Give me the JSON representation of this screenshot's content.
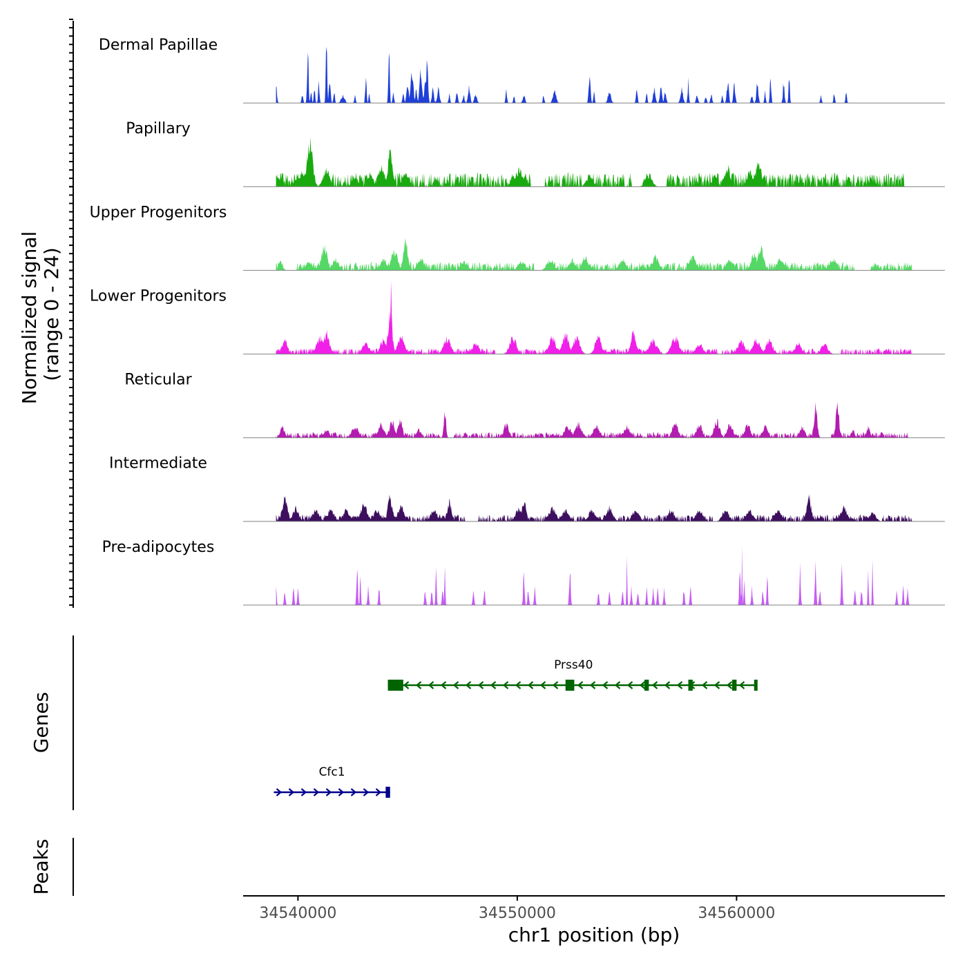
{
  "chart_data": {
    "type": "area",
    "title": "",
    "ylabel": "Normalized signal",
    "ylabel_range": "(range 0 - 24)",
    "ylim": [
      0,
      24
    ],
    "xlabel": "chr1 position (bp)",
    "xlim": [
      34537500,
      34569500
    ],
    "x_ticks": [
      34540000,
      34550000,
      34560000
    ],
    "x_tick_labels": [
      "34540000",
      "34550000",
      "34560000"
    ],
    "track_start": 34539000,
    "track_end": 34568000,
    "series": [
      {
        "name": "Dermal Papillae",
        "color": "#1f3fd8",
        "peaks": [
          [
            34539000,
            6,
            80
          ],
          [
            34540200,
            3,
            70
          ],
          [
            34540450,
            22,
            60
          ],
          [
            34540600,
            5,
            60
          ],
          [
            34540750,
            6,
            60
          ],
          [
            34540950,
            8,
            60
          ],
          [
            34541300,
            22,
            60
          ],
          [
            34541450,
            9,
            70
          ],
          [
            34541650,
            5,
            60
          ],
          [
            34542050,
            3,
            160
          ],
          [
            34542600,
            3,
            60
          ],
          [
            34543100,
            10,
            60
          ],
          [
            34543250,
            3,
            60
          ],
          [
            34544150,
            22,
            60
          ],
          [
            34544350,
            4,
            60
          ],
          [
            34544800,
            3,
            70
          ],
          [
            34545000,
            6,
            100
          ],
          [
            34545200,
            11,
            120
          ],
          [
            34545400,
            5,
            80
          ],
          [
            34545600,
            12,
            110
          ],
          [
            34545800,
            7,
            100
          ],
          [
            34545900,
            19,
            70
          ],
          [
            34546150,
            5,
            90
          ],
          [
            34546400,
            5,
            110
          ],
          [
            34546900,
            3,
            70
          ],
          [
            34547250,
            4,
            80
          ],
          [
            34547550,
            3,
            80
          ],
          [
            34547800,
            6,
            100
          ],
          [
            34548100,
            3,
            120
          ],
          [
            34549500,
            5,
            60
          ],
          [
            34549850,
            3,
            60
          ],
          [
            34550300,
            3,
            100
          ],
          [
            34551200,
            3,
            60
          ],
          [
            34551700,
            4,
            150
          ],
          [
            34553300,
            11,
            80
          ],
          [
            34553500,
            4,
            60
          ],
          [
            34554200,
            4,
            140
          ],
          [
            34555450,
            5,
            70
          ],
          [
            34555900,
            4,
            60
          ],
          [
            34556250,
            5,
            100
          ],
          [
            34556550,
            5,
            100
          ],
          [
            34556750,
            4,
            90
          ],
          [
            34557500,
            5,
            120
          ],
          [
            34557800,
            8,
            60
          ],
          [
            34558200,
            3,
            90
          ],
          [
            34558600,
            3,
            70
          ],
          [
            34558850,
            3,
            80
          ],
          [
            34559350,
            3,
            60
          ],
          [
            34559600,
            8,
            90
          ],
          [
            34559900,
            7,
            80
          ],
          [
            34560700,
            3,
            80
          ],
          [
            34560950,
            7,
            90
          ],
          [
            34561300,
            4,
            60
          ],
          [
            34561550,
            10,
            60
          ],
          [
            34562150,
            8,
            70
          ],
          [
            34562400,
            9,
            60
          ],
          [
            34563850,
            3,
            60
          ],
          [
            34564450,
            4,
            60
          ],
          [
            34565000,
            4,
            60
          ]
        ]
      },
      {
        "name": "Papillary",
        "color": "#1aaa10",
        "peaks": [
          [
            34539000,
            3,
            400
          ],
          [
            34540200,
            5,
            500
          ],
          [
            34540550,
            16,
            250
          ],
          [
            34541300,
            6,
            300
          ],
          [
            34542600,
            4,
            250
          ],
          [
            34543300,
            5,
            200
          ],
          [
            34543800,
            7,
            300
          ],
          [
            34544200,
            12,
            200
          ],
          [
            34544900,
            5,
            300
          ],
          [
            34546300,
            3,
            200
          ],
          [
            34549800,
            4,
            200
          ],
          [
            34550100,
            6,
            300
          ],
          [
            34553300,
            4,
            300
          ],
          [
            34556000,
            4,
            300
          ],
          [
            34559000,
            4,
            200
          ],
          [
            34559600,
            7,
            200
          ],
          [
            34560600,
            6,
            250
          ],
          [
            34561000,
            9,
            250
          ],
          [
            34566200,
            2,
            300
          ]
        ],
        "baseline": 2.5
      },
      {
        "name": "Upper Progenitors",
        "color": "#55d865",
        "peaks": [
          [
            34539200,
            3,
            200
          ],
          [
            34540500,
            3,
            300
          ],
          [
            34541200,
            9,
            250
          ],
          [
            34541700,
            4,
            300
          ],
          [
            34543900,
            4,
            300
          ],
          [
            34544400,
            7,
            300
          ],
          [
            34544900,
            11,
            200
          ],
          [
            34545600,
            4,
            300
          ],
          [
            34547600,
            3,
            300
          ],
          [
            34550200,
            3,
            300
          ],
          [
            34551500,
            4,
            300
          ],
          [
            34552500,
            4,
            250
          ],
          [
            34553100,
            5,
            250
          ],
          [
            34554800,
            4,
            300
          ],
          [
            34556300,
            5,
            300
          ],
          [
            34558000,
            5,
            300
          ],
          [
            34559700,
            4,
            300
          ],
          [
            34560800,
            6,
            250
          ],
          [
            34561100,
            9,
            250
          ],
          [
            34562000,
            4,
            300
          ],
          [
            34564400,
            4,
            300
          ]
        ],
        "baseline": 1.5
      },
      {
        "name": "Lower Progenitors",
        "color": "#f020e8",
        "peaks": [
          [
            34539400,
            5,
            250
          ],
          [
            34541000,
            6,
            300
          ],
          [
            34541300,
            8,
            250
          ],
          [
            34543100,
            4,
            300
          ],
          [
            34543900,
            5,
            300
          ],
          [
            34544200,
            14,
            200
          ],
          [
            34544250,
            24,
            80
          ],
          [
            34544700,
            6,
            300
          ],
          [
            34546800,
            6,
            300
          ],
          [
            34548100,
            4,
            300
          ],
          [
            34549800,
            6,
            300
          ],
          [
            34551600,
            6,
            300
          ],
          [
            34552200,
            7,
            300
          ],
          [
            34552700,
            6,
            300
          ],
          [
            34553700,
            6,
            300
          ],
          [
            34555300,
            8,
            250
          ],
          [
            34556200,
            5,
            350
          ],
          [
            34557200,
            6,
            350
          ],
          [
            34558300,
            4,
            300
          ],
          [
            34560200,
            5,
            300
          ],
          [
            34560900,
            5,
            350
          ],
          [
            34561500,
            5,
            300
          ],
          [
            34562800,
            4,
            300
          ],
          [
            34564000,
            4,
            300
          ]
        ],
        "baseline": 1.0
      },
      {
        "name": "Reticular",
        "color": "#b31cb0",
        "peaks": [
          [
            34539300,
            4,
            200
          ],
          [
            34541300,
            3,
            250
          ],
          [
            34542600,
            4,
            300
          ],
          [
            34543800,
            5,
            250
          ],
          [
            34544300,
            6,
            250
          ],
          [
            34544650,
            7,
            200
          ],
          [
            34545500,
            3,
            200
          ],
          [
            34546700,
            10,
            100
          ],
          [
            34549500,
            5,
            200
          ],
          [
            34552300,
            4,
            300
          ],
          [
            34552800,
            5,
            300
          ],
          [
            34553600,
            4,
            300
          ],
          [
            34555000,
            4,
            300
          ],
          [
            34557200,
            6,
            250
          ],
          [
            34558300,
            5,
            250
          ],
          [
            34559100,
            6,
            250
          ],
          [
            34559700,
            5,
            250
          ],
          [
            34560500,
            5,
            250
          ],
          [
            34561300,
            4,
            250
          ],
          [
            34563000,
            4,
            200
          ],
          [
            34563600,
            11,
            150
          ],
          [
            34564600,
            12,
            150
          ],
          [
            34565300,
            3,
            150
          ],
          [
            34566000,
            4,
            150
          ]
        ],
        "baseline": 1.0
      },
      {
        "name": "Intermediate",
        "color": "#3d0f5e",
        "peaks": [
          [
            34539400,
            8,
            250
          ],
          [
            34539900,
            5,
            250
          ],
          [
            34540800,
            4,
            300
          ],
          [
            34541500,
            4,
            300
          ],
          [
            34542200,
            4,
            300
          ],
          [
            34543000,
            6,
            300
          ],
          [
            34543600,
            4,
            300
          ],
          [
            34544200,
            9,
            200
          ],
          [
            34544700,
            5,
            300
          ],
          [
            34546200,
            4,
            300
          ],
          [
            34546900,
            7,
            200
          ],
          [
            34550100,
            5,
            300
          ],
          [
            34550300,
            7,
            200
          ],
          [
            34551600,
            5,
            300
          ],
          [
            34552200,
            4,
            300
          ],
          [
            34553400,
            4,
            300
          ],
          [
            34554200,
            5,
            300
          ],
          [
            34555400,
            4,
            300
          ],
          [
            34557000,
            4,
            300
          ],
          [
            34558300,
            4,
            300
          ],
          [
            34559500,
            4,
            300
          ],
          [
            34560600,
            4,
            300
          ],
          [
            34561900,
            4,
            300
          ],
          [
            34563300,
            9,
            200
          ],
          [
            34564900,
            5,
            300
          ],
          [
            34566200,
            3,
            300
          ]
        ],
        "baseline": 1.2
      },
      {
        "name": "Pre-adipocytes",
        "color": "#c55cf5",
        "peaks": [
          [
            34539000,
            6,
            60
          ],
          [
            34539400,
            6,
            60
          ],
          [
            34539800,
            6,
            60
          ],
          [
            34540000,
            6,
            60
          ],
          [
            34542700,
            14,
            60
          ],
          [
            34542850,
            14,
            40
          ],
          [
            34543200,
            6,
            60
          ],
          [
            34543700,
            6,
            60
          ],
          [
            34545800,
            6,
            60
          ],
          [
            34546100,
            6,
            60
          ],
          [
            34546300,
            13,
            50
          ],
          [
            34546600,
            6,
            60
          ],
          [
            34546700,
            14,
            40
          ],
          [
            34548000,
            6,
            60
          ],
          [
            34548500,
            6,
            60
          ],
          [
            34550300,
            13,
            60
          ],
          [
            34550500,
            6,
            60
          ],
          [
            34550800,
            6,
            60
          ],
          [
            34552400,
            14,
            60
          ],
          [
            34553700,
            6,
            60
          ],
          [
            34554200,
            6,
            60
          ],
          [
            34554800,
            6,
            60
          ],
          [
            34555000,
            21,
            30
          ],
          [
            34555200,
            6,
            60
          ],
          [
            34555500,
            6,
            60
          ],
          [
            34555900,
            6,
            60
          ],
          [
            34556200,
            6,
            60
          ],
          [
            34556400,
            6,
            60
          ],
          [
            34556700,
            6,
            60
          ],
          [
            34557600,
            6,
            60
          ],
          [
            34557900,
            6,
            60
          ],
          [
            34560150,
            14,
            60
          ],
          [
            34560250,
            21,
            30
          ],
          [
            34560350,
            14,
            40
          ],
          [
            34560700,
            6,
            60
          ],
          [
            34561200,
            6,
            60
          ],
          [
            34561400,
            13,
            50
          ],
          [
            34562900,
            13,
            60
          ],
          [
            34563600,
            14,
            60
          ],
          [
            34563800,
            6,
            60
          ],
          [
            34564800,
            14,
            60
          ],
          [
            34565400,
            6,
            60
          ],
          [
            34565700,
            6,
            60
          ],
          [
            34566000,
            14,
            40
          ],
          [
            34566200,
            14,
            40
          ],
          [
            34567300,
            6,
            60
          ],
          [
            34567600,
            6,
            60
          ],
          [
            34567800,
            6,
            60
          ]
        ]
      }
    ],
    "track_labels": [
      "Dermal Papillae",
      "Papillary",
      "Upper Progenitors",
      "Lower Progenitors",
      "Reticular",
      "Intermediate",
      "Pre-adipocytes"
    ],
    "genes": [
      {
        "name": "Prss40",
        "strand": "-",
        "start": 34544100,
        "end": 34560900,
        "color": "#006400",
        "exons": [
          [
            34544100,
            34544800
          ],
          [
            34552200,
            34552600
          ],
          [
            34555800,
            34556000
          ],
          [
            34557800,
            34558000
          ],
          [
            34559800,
            34560000
          ],
          [
            34560800,
            34560900
          ]
        ]
      },
      {
        "name": "Cfc1",
        "strand": "+",
        "start": 34538900,
        "end": 34544200,
        "color": "#00008b",
        "exons": [
          [
            34544000,
            34544200
          ]
        ]
      }
    ],
    "panel_labels": {
      "genes": "Genes",
      "peaks": "Peaks"
    }
  }
}
